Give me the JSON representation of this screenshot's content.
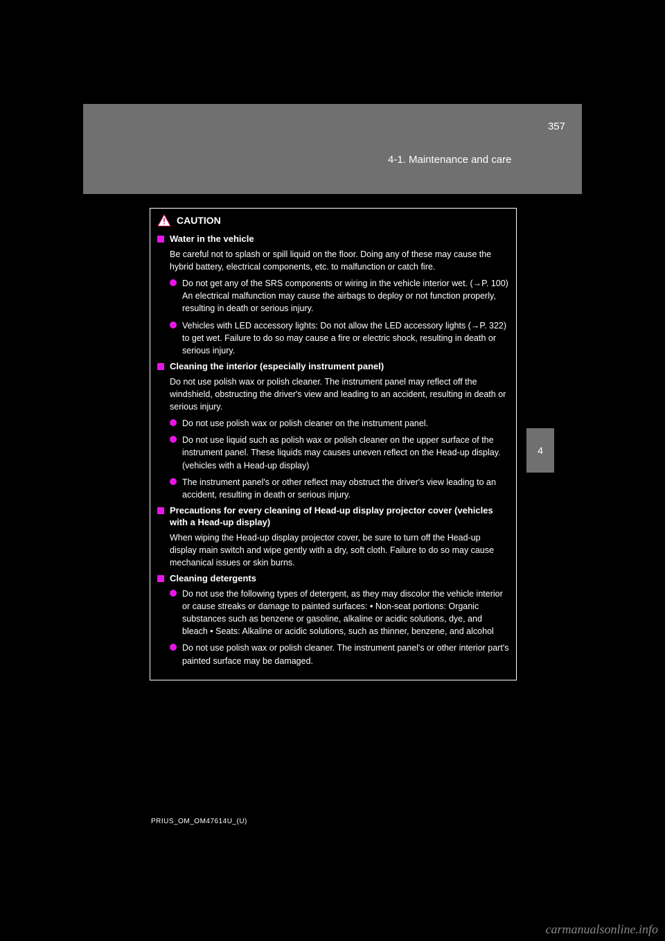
{
  "header": {
    "page_number": "357",
    "section_title": "4-1. Maintenance and care"
  },
  "side_tab": {
    "number": "4",
    "label": "Maintenance and care"
  },
  "caution_label": "CAUTION",
  "sections": [
    {
      "title": "Water in the vehicle",
      "body": "Be careful not to splash or spill liquid on the floor.\nDoing any of these may cause the hybrid battery, electrical components, etc. to malfunction or catch fire.",
      "bullets": [
        "Do not get any of the SRS components or wiring in the vehicle interior wet. (→P. 100)\nAn electrical malfunction may cause the airbags to deploy or not function properly, resulting in death or serious injury.",
        "Vehicles with LED accessory lights: Do not allow the LED accessory lights (→P. 322) to get wet. Failure to do so may cause a fire or electric shock, resulting in death or serious injury."
      ]
    },
    {
      "title": "Cleaning the interior (especially instrument panel)",
      "body": "Do not use polish wax or polish cleaner. The instrument panel may reflect off the windshield, obstructing the driver's view and leading to an accident, resulting in death or serious injury.",
      "bullets": [
        "Do not use polish wax or polish cleaner on the instrument panel.",
        "Do not use liquid such as polish wax or polish cleaner on the upper surface of the instrument panel. These liquids may causes uneven reflect on the Head-up display. (vehicles with a Head-up display)",
        "The instrument panel's or other reflect may obstruct the driver's view leading to an accident, resulting in death or serious injury."
      ]
    },
    {
      "title": "Precautions for every cleaning of Head-up display projector cover (vehicles with a Head-up display)",
      "body": "When wiping the Head-up display projector cover, be sure to turn off the Head-up display main switch and wipe gently with a dry, soft cloth. Failure to do so may cause mechanical issues or skin burns.",
      "bullets": []
    },
    {
      "title": "Cleaning detergents",
      "body": "",
      "bullets": [
        "Do not use the following types of detergent, as they may discolor the vehicle interior or cause streaks or damage to painted surfaces:\n• Non-seat portions: Organic substances such as benzene or gasoline, alkaline or acidic solutions, dye, and bleach\n• Seats: Alkaline or acidic solutions, such as thinner, benzene, and alcohol",
        "Do not use polish wax or polish cleaner. The instrument panel's or other interior part's painted surface may be damaged."
      ]
    }
  ],
  "footer_code": "PRIUS_OM_OM47614U_(U)",
  "watermark": "carmanualsonline.info",
  "colors": {
    "bg": "#000000",
    "bar": "#707070",
    "text": "#ffffff",
    "accent": "#e815e8"
  }
}
